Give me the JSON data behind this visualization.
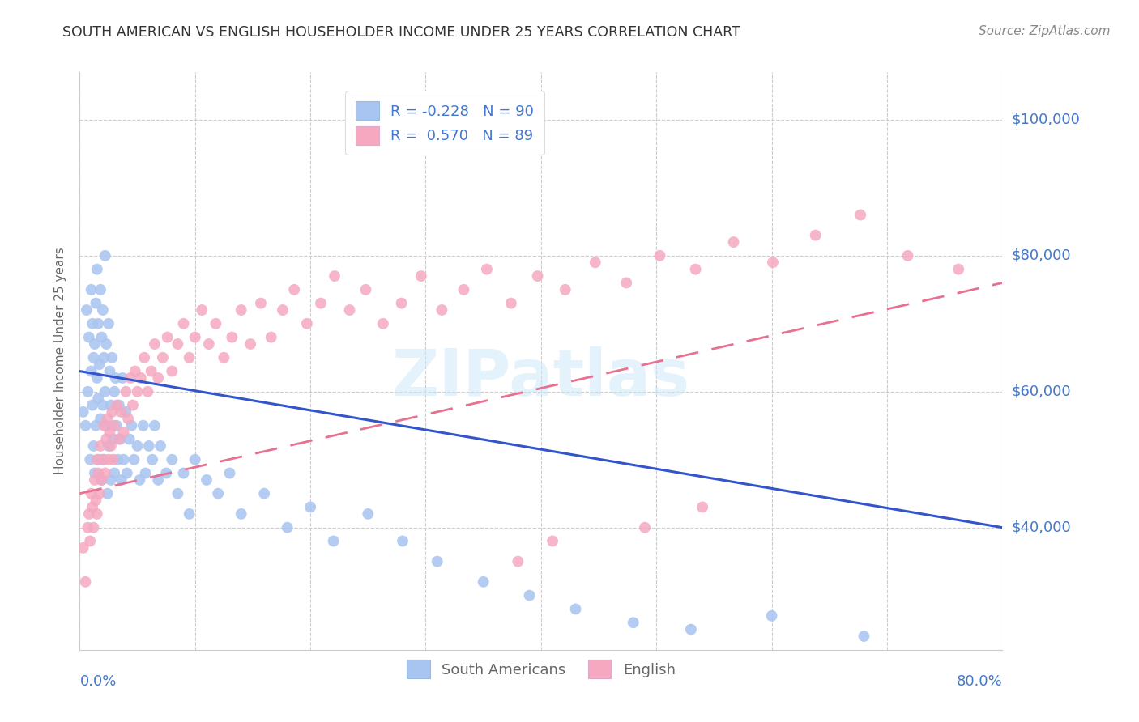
{
  "title": "SOUTH AMERICAN VS ENGLISH HOUSEHOLDER INCOME UNDER 25 YEARS CORRELATION CHART",
  "source": "Source: ZipAtlas.com",
  "ylabel": "Householder Income Under 25 years",
  "ytick_labels": [
    "$40,000",
    "$60,000",
    "$80,000",
    "$100,000"
  ],
  "ytick_values": [
    40000,
    60000,
    80000,
    100000
  ],
  "ymin": 22000,
  "ymax": 107000,
  "xmin": 0.0,
  "xmax": 0.8,
  "watermark": "ZIPatlas",
  "legend_blue_label": "South Americans",
  "legend_pink_label": "English",
  "blue_R": "-0.228",
  "blue_N": "90",
  "pink_R": "0.570",
  "pink_N": "89",
  "blue_color": "#a8c4f0",
  "pink_color": "#f5a8c0",
  "blue_line_color": "#3355cc",
  "pink_line_color": "#e87090",
  "axis_color": "#4477cc",
  "title_color": "#333333",
  "grid_color": "#cccccc",
  "background_color": "#ffffff",
  "blue_scatter_x": [
    0.003,
    0.005,
    0.006,
    0.007,
    0.008,
    0.009,
    0.01,
    0.01,
    0.011,
    0.011,
    0.012,
    0.012,
    0.013,
    0.013,
    0.014,
    0.014,
    0.015,
    0.015,
    0.016,
    0.016,
    0.017,
    0.017,
    0.018,
    0.018,
    0.019,
    0.019,
    0.02,
    0.02,
    0.021,
    0.021,
    0.022,
    0.022,
    0.023,
    0.023,
    0.024,
    0.025,
    0.025,
    0.026,
    0.027,
    0.027,
    0.028,
    0.029,
    0.03,
    0.03,
    0.031,
    0.032,
    0.033,
    0.034,
    0.035,
    0.036,
    0.037,
    0.038,
    0.04,
    0.041,
    0.043,
    0.045,
    0.047,
    0.05,
    0.052,
    0.055,
    0.057,
    0.06,
    0.063,
    0.065,
    0.068,
    0.07,
    0.075,
    0.08,
    0.085,
    0.09,
    0.095,
    0.1,
    0.11,
    0.12,
    0.13,
    0.14,
    0.16,
    0.18,
    0.2,
    0.22,
    0.25,
    0.28,
    0.31,
    0.35,
    0.39,
    0.43,
    0.48,
    0.53,
    0.6,
    0.68
  ],
  "blue_scatter_y": [
    57000,
    55000,
    72000,
    60000,
    68000,
    50000,
    63000,
    75000,
    58000,
    70000,
    65000,
    52000,
    67000,
    48000,
    73000,
    55000,
    62000,
    78000,
    59000,
    70000,
    64000,
    50000,
    75000,
    56000,
    68000,
    47000,
    72000,
    58000,
    65000,
    50000,
    60000,
    80000,
    55000,
    67000,
    45000,
    70000,
    52000,
    63000,
    58000,
    47000,
    65000,
    53000,
    60000,
    48000,
    62000,
    55000,
    50000,
    58000,
    53000,
    47000,
    62000,
    50000,
    57000,
    48000,
    53000,
    55000,
    50000,
    52000,
    47000,
    55000,
    48000,
    52000,
    50000,
    55000,
    47000,
    52000,
    48000,
    50000,
    45000,
    48000,
    42000,
    50000,
    47000,
    45000,
    48000,
    42000,
    45000,
    40000,
    43000,
    38000,
    42000,
    38000,
    35000,
    32000,
    30000,
    28000,
    26000,
    25000,
    27000,
    24000
  ],
  "pink_scatter_x": [
    0.003,
    0.005,
    0.007,
    0.008,
    0.009,
    0.01,
    0.011,
    0.012,
    0.013,
    0.014,
    0.015,
    0.015,
    0.016,
    0.017,
    0.018,
    0.019,
    0.02,
    0.021,
    0.022,
    0.023,
    0.024,
    0.025,
    0.026,
    0.027,
    0.028,
    0.029,
    0.03,
    0.032,
    0.034,
    0.036,
    0.038,
    0.04,
    0.042,
    0.044,
    0.046,
    0.048,
    0.05,
    0.053,
    0.056,
    0.059,
    0.062,
    0.065,
    0.068,
    0.072,
    0.076,
    0.08,
    0.085,
    0.09,
    0.095,
    0.1,
    0.106,
    0.112,
    0.118,
    0.125,
    0.132,
    0.14,
    0.148,
    0.157,
    0.166,
    0.176,
    0.186,
    0.197,
    0.209,
    0.221,
    0.234,
    0.248,
    0.263,
    0.279,
    0.296,
    0.314,
    0.333,
    0.353,
    0.374,
    0.397,
    0.421,
    0.447,
    0.474,
    0.503,
    0.534,
    0.567,
    0.601,
    0.638,
    0.677,
    0.718,
    0.762,
    0.54,
    0.49,
    0.41,
    0.38
  ],
  "pink_scatter_y": [
    37000,
    32000,
    40000,
    42000,
    38000,
    45000,
    43000,
    40000,
    47000,
    44000,
    50000,
    42000,
    48000,
    45000,
    52000,
    47000,
    50000,
    55000,
    48000,
    53000,
    56000,
    50000,
    54000,
    52000,
    57000,
    50000,
    55000,
    58000,
    53000,
    57000,
    54000,
    60000,
    56000,
    62000,
    58000,
    63000,
    60000,
    62000,
    65000,
    60000,
    63000,
    67000,
    62000,
    65000,
    68000,
    63000,
    67000,
    70000,
    65000,
    68000,
    72000,
    67000,
    70000,
    65000,
    68000,
    72000,
    67000,
    73000,
    68000,
    72000,
    75000,
    70000,
    73000,
    77000,
    72000,
    75000,
    70000,
    73000,
    77000,
    72000,
    75000,
    78000,
    73000,
    77000,
    75000,
    79000,
    76000,
    80000,
    78000,
    82000,
    79000,
    83000,
    86000,
    80000,
    78000,
    43000,
    40000,
    38000,
    35000
  ],
  "blue_trendline_x": [
    0.0,
    0.8
  ],
  "blue_trendline_y": [
    63000,
    40000
  ],
  "pink_trendline_x": [
    0.0,
    0.8
  ],
  "pink_trendline_y": [
    45000,
    76000
  ]
}
